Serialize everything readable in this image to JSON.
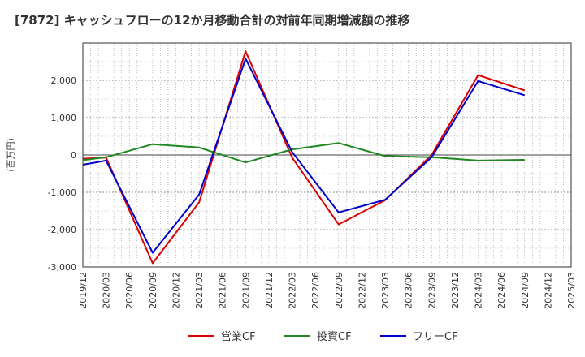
{
  "chart_data": {
    "type": "line",
    "title": "[7872]  キャッシュフローの12か月移動合計の対前年同期増減額の推移",
    "ylabel": "(百万円)",
    "xlabel": "",
    "ylim": [
      -3000,
      3000
    ],
    "y_ticks": [
      2000,
      1000,
      0,
      -1000,
      -2000,
      -3000
    ],
    "y_tick_labels": [
      "2,000",
      "1,000",
      "0",
      "-1,000",
      "-2,000",
      "-3,000"
    ],
    "categories": [
      "2019/12",
      "2020/03",
      "2020/06",
      "2020/09",
      "2020/12",
      "2021/03",
      "2021/06",
      "2021/09",
      "2021/12",
      "2022/03",
      "2022/06",
      "2022/09",
      "2022/12",
      "2023/03",
      "2023/06",
      "2023/09",
      "2023/12",
      "2024/03",
      "2024/06",
      "2024/09",
      "2024/12",
      "2025/03"
    ],
    "grid": true,
    "legend_position": "bottom",
    "series": [
      {
        "name": "営業CF",
        "color": "#dd0000",
        "values": [
          -100,
          -70,
          null,
          -2900,
          null,
          -1270,
          null,
          2780,
          null,
          -70,
          null,
          -1860,
          null,
          -1210,
          null,
          0,
          null,
          2140,
          null,
          1730,
          null,
          null
        ]
      },
      {
        "name": "投資CF",
        "color": "#228822",
        "values": [
          -140,
          -60,
          null,
          290,
          null,
          200,
          null,
          -200,
          null,
          150,
          null,
          320,
          null,
          -30,
          null,
          -60,
          null,
          -150,
          null,
          -130,
          null,
          null
        ]
      },
      {
        "name": "フリーCF",
        "color": "#0000cc",
        "values": [
          -260,
          -150,
          null,
          -2620,
          null,
          -1060,
          null,
          2580,
          null,
          80,
          null,
          -1540,
          null,
          -1200,
          null,
          -60,
          null,
          1980,
          null,
          1600,
          null,
          null
        ]
      }
    ]
  }
}
